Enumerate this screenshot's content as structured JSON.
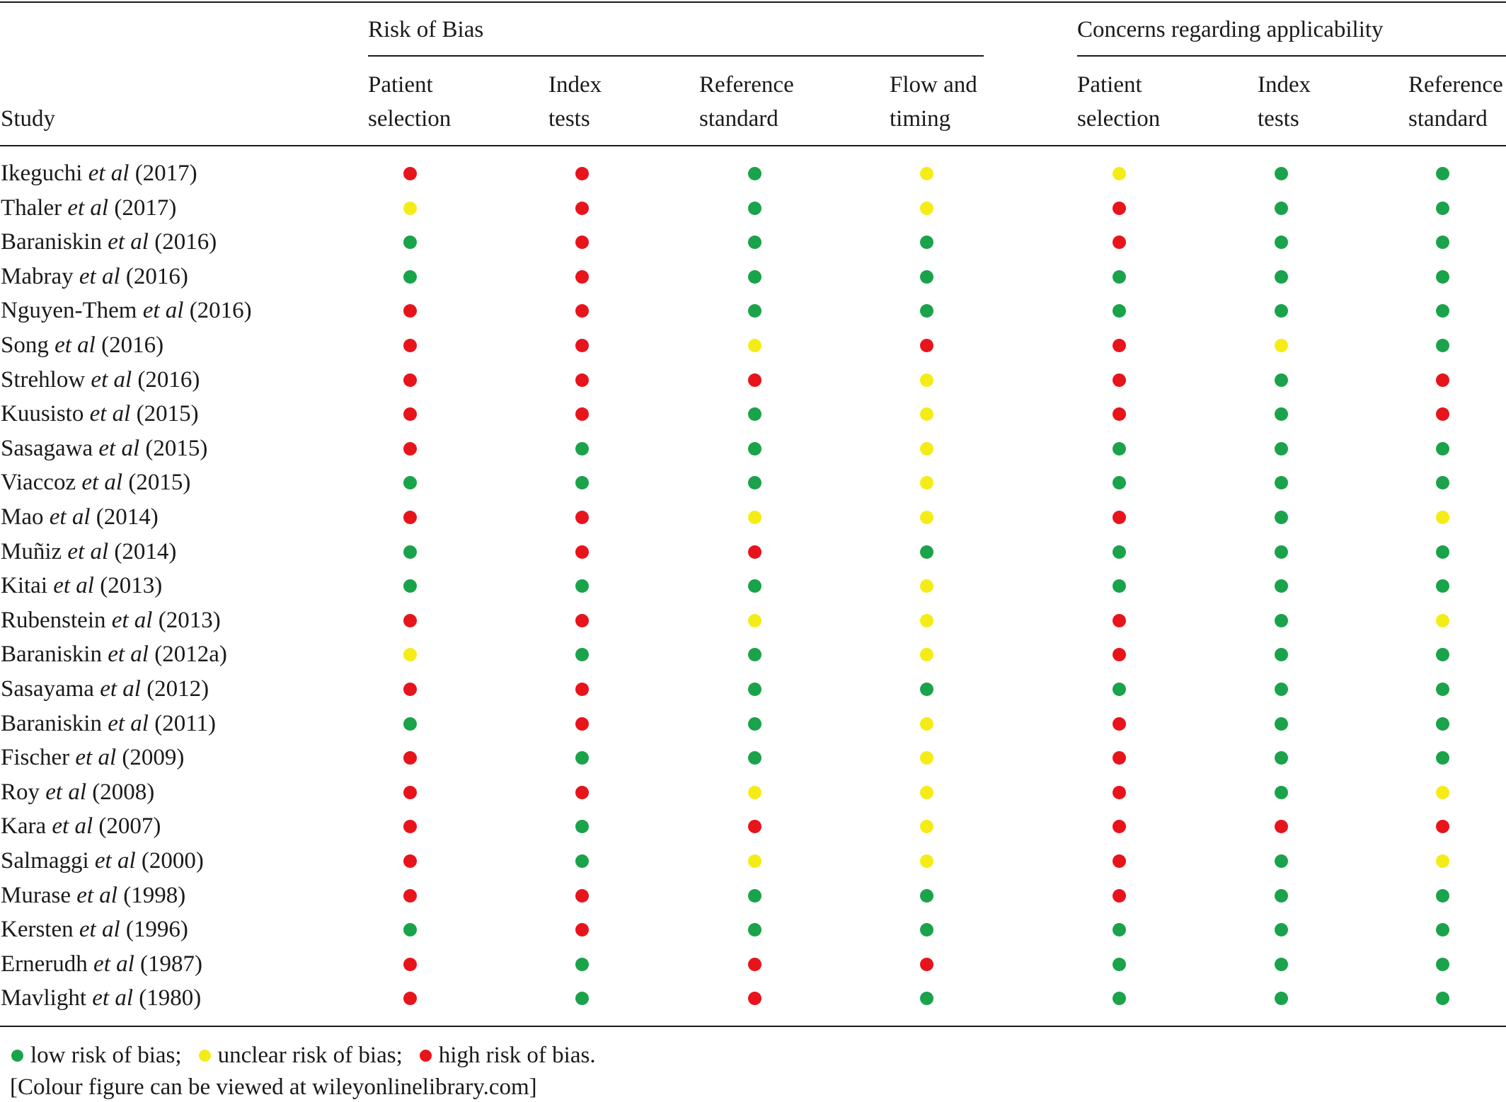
{
  "header": {
    "study_label": "Study",
    "group_risk_of_bias": "Risk of Bias",
    "group_applicability": "Concerns regarding applicability",
    "columns": [
      {
        "line1": "Patient",
        "line2": "selection"
      },
      {
        "line1": "Index",
        "line2": "tests"
      },
      {
        "line1": "Reference",
        "line2": "standard"
      },
      {
        "line1": "Flow and",
        "line2": "timing"
      },
      {
        "line1": "Patient",
        "line2": "selection"
      },
      {
        "line1": "Index",
        "line2": "tests"
      },
      {
        "line1": "Reference",
        "line2": "standard"
      }
    ]
  },
  "rows": [
    {
      "author": "Ikeguchi",
      "etal": "et al",
      "year": "(2017)",
      "ratings": [
        "high",
        "high",
        "low",
        "unclear",
        "unclear",
        "low",
        "low"
      ]
    },
    {
      "author": "Thaler",
      "etal": "et al",
      "year": "(2017)",
      "ratings": [
        "unclear",
        "high",
        "low",
        "unclear",
        "high",
        "low",
        "low"
      ]
    },
    {
      "author": "Baraniskin",
      "etal": "et al",
      "year": "(2016)",
      "ratings": [
        "low",
        "high",
        "low",
        "low",
        "high",
        "low",
        "low"
      ]
    },
    {
      "author": "Mabray",
      "etal": "et al",
      "year": "(2016)",
      "ratings": [
        "low",
        "high",
        "low",
        "low",
        "low",
        "low",
        "low"
      ]
    },
    {
      "author": "Nguyen-Them",
      "etal": "et al",
      "year": "(2016)",
      "ratings": [
        "high",
        "high",
        "low",
        "low",
        "low",
        "low",
        "low"
      ]
    },
    {
      "author": "Song",
      "etal": "et al",
      "year": "(2016)",
      "ratings": [
        "high",
        "high",
        "unclear",
        "high",
        "high",
        "unclear",
        "low"
      ]
    },
    {
      "author": "Strehlow",
      "etal": "et al",
      "year": "(2016)",
      "ratings": [
        "high",
        "high",
        "high",
        "unclear",
        "high",
        "low",
        "high"
      ]
    },
    {
      "author": "Kuusisto",
      "etal": "et al",
      "year": "(2015)",
      "ratings": [
        "high",
        "high",
        "low",
        "unclear",
        "high",
        "low",
        "high"
      ]
    },
    {
      "author": "Sasagawa",
      "etal": "et al",
      "year": "(2015)",
      "ratings": [
        "high",
        "low",
        "low",
        "unclear",
        "low",
        "low",
        "low"
      ]
    },
    {
      "author": "Viaccoz",
      "etal": "et al",
      "year": "(2015)",
      "ratings": [
        "low",
        "low",
        "low",
        "unclear",
        "low",
        "low",
        "low"
      ]
    },
    {
      "author": "Mao",
      "etal": "et al",
      "year": "(2014)",
      "ratings": [
        "high",
        "high",
        "unclear",
        "unclear",
        "high",
        "low",
        "unclear"
      ]
    },
    {
      "author": "Muñiz",
      "etal": "et al",
      "year": "(2014)",
      "ratings": [
        "low",
        "high",
        "high",
        "low",
        "low",
        "low",
        "low"
      ]
    },
    {
      "author": "Kitai",
      "etal": "et al",
      "year": "(2013)",
      "ratings": [
        "low",
        "low",
        "low",
        "unclear",
        "low",
        "low",
        "low"
      ]
    },
    {
      "author": "Rubenstein",
      "etal": "et al",
      "year": "(2013)",
      "ratings": [
        "high",
        "high",
        "unclear",
        "unclear",
        "high",
        "low",
        "unclear"
      ]
    },
    {
      "author": "Baraniskin",
      "etal": "et al",
      "year": "(2012a)",
      "ratings": [
        "unclear",
        "low",
        "low",
        "unclear",
        "high",
        "low",
        "low"
      ]
    },
    {
      "author": "Sasayama",
      "etal": "et al",
      "year": "(2012)",
      "ratings": [
        "high",
        "high",
        "low",
        "low",
        "low",
        "low",
        "low"
      ]
    },
    {
      "author": "Baraniskin",
      "etal": "et al",
      "year": "(2011)",
      "ratings": [
        "low",
        "high",
        "low",
        "unclear",
        "high",
        "low",
        "low"
      ]
    },
    {
      "author": "Fischer",
      "etal": "et al",
      "year": "(2009)",
      "ratings": [
        "high",
        "low",
        "low",
        "unclear",
        "high",
        "low",
        "low"
      ]
    },
    {
      "author": "Roy",
      "etal": "et al",
      "year": "(2008)",
      "ratings": [
        "high",
        "high",
        "unclear",
        "unclear",
        "high",
        "low",
        "unclear"
      ]
    },
    {
      "author": "Kara",
      "etal": "et al",
      "year": "(2007)",
      "ratings": [
        "high",
        "low",
        "high",
        "unclear",
        "high",
        "high",
        "high"
      ]
    },
    {
      "author": "Salmaggi",
      "etal": "et al",
      "year": "(2000)",
      "ratings": [
        "high",
        "low",
        "unclear",
        "unclear",
        "high",
        "low",
        "unclear"
      ]
    },
    {
      "author": "Murase",
      "etal": "et al",
      "year": "(1998)",
      "ratings": [
        "high",
        "high",
        "low",
        "low",
        "high",
        "low",
        "low"
      ]
    },
    {
      "author": "Kersten",
      "etal": "et al",
      "year": "(1996)",
      "ratings": [
        "low",
        "high",
        "low",
        "low",
        "low",
        "low",
        "low"
      ]
    },
    {
      "author": "Ernerudh",
      "etal": "et al",
      "year": "(1987)",
      "ratings": [
        "high",
        "low",
        "high",
        "high",
        "low",
        "low",
        "low"
      ]
    },
    {
      "author": "Mavlight",
      "etal": "et al",
      "year": "(1980)",
      "ratings": [
        "high",
        "low",
        "high",
        "low",
        "low",
        "low",
        "low"
      ]
    }
  ],
  "legend": {
    "low": "low risk of bias;",
    "unclear": "unclear risk of bias;",
    "high": "high risk of bias."
  },
  "colors": {
    "low": "#1aa34a",
    "unclear": "#f5ec17",
    "high": "#e8141b"
  },
  "credit": "[Colour figure can be viewed at wileyonlinelibrary.com]"
}
